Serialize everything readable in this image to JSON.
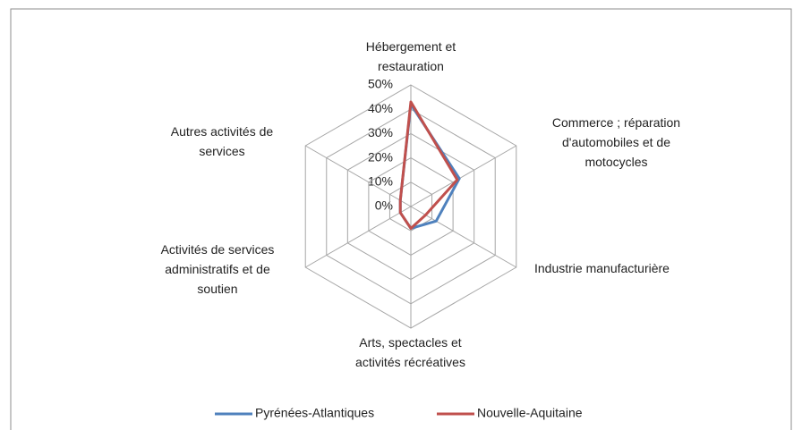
{
  "chart_data": {
    "type": "radar",
    "categories": [
      "Hébergement et restauration",
      "Commerce ; réparation d'automobiles et de motocycles",
      "Industrie manufacturière",
      "Arts, spectacles et activités récréatives",
      "Activités de services administratifs et de soutien",
      "Autres activités de services"
    ],
    "series": [
      {
        "name": "Pyrénées-Atlantiques",
        "color": "#4f81bd",
        "values": [
          42,
          23,
          12,
          9,
          5,
          5
        ]
      },
      {
        "name": "Nouvelle-Aquitaine",
        "color": "#c0504d",
        "values": [
          43,
          22,
          7,
          9,
          5,
          5
        ]
      }
    ],
    "ylim": [
      0,
      50
    ],
    "yticks": [
      {
        "value": 0,
        "label": "0%"
      },
      {
        "value": 10,
        "label": "10%"
      },
      {
        "value": 20,
        "label": "20%"
      },
      {
        "value": 30,
        "label": "30%"
      },
      {
        "value": 40,
        "label": "40%"
      },
      {
        "value": 50,
        "label": "50%"
      }
    ],
    "grid": true,
    "legend": "bottom"
  }
}
